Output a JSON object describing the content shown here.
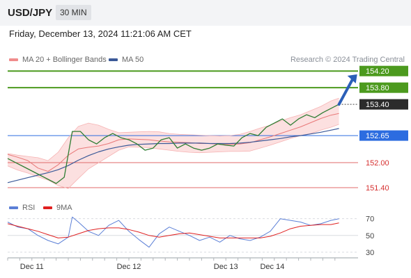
{
  "header": {
    "symbol": "USD/JPY",
    "timeframe": "30 MIN"
  },
  "timestamp": "Friday, December 13, 2024 11:21:06 AM CET",
  "legend": [
    {
      "label": "MA 20 + Bollinger Bands",
      "color": "#f08c8c"
    },
    {
      "label": "MA 50",
      "color": "#3b5998"
    }
  ],
  "credit": "Research © 2024 Trading Central",
  "rsi_legend": [
    {
      "label": "RSI",
      "color": "#5b7fd6"
    },
    {
      "label": "9MA",
      "color": "#e02020"
    }
  ],
  "chart_data": [
    {
      "type": "line",
      "series": [
        {
          "name": "MA 20 + Bollinger Bands",
          "x": [
            0,
            5,
            10,
            15,
            20,
            25,
            30,
            35,
            40,
            45,
            50,
            55,
            60,
            65,
            70,
            75,
            80,
            85,
            90,
            95,
            100,
            105,
            110,
            115,
            120,
            125,
            130,
            135,
            140,
            145,
            150,
            155,
            160,
            164
          ],
          "values": [
            152.2,
            152.13,
            152.05,
            151.87,
            151.79,
            151.95,
            152.18,
            152.33,
            152.37,
            152.4,
            152.46,
            152.55,
            152.57,
            152.56,
            152.55,
            152.52,
            152.5,
            152.49,
            152.48,
            152.46,
            152.46,
            152.44,
            152.44,
            152.45,
            152.48,
            152.55,
            152.62,
            152.7,
            152.78,
            152.86,
            152.96,
            153.06,
            153.14,
            153.18
          ]
        },
        {
          "name": "MA 50",
          "x": [
            0,
            5,
            10,
            15,
            20,
            25,
            30,
            35,
            40,
            45,
            50,
            55,
            60,
            65,
            70,
            75,
            80,
            85,
            90,
            95,
            100,
            105,
            110,
            115,
            120,
            125,
            130,
            135,
            140,
            145,
            150,
            155,
            160,
            164
          ],
          "values": [
            151.52,
            151.58,
            151.64,
            151.7,
            151.76,
            151.83,
            151.93,
            152.06,
            152.17,
            152.26,
            152.33,
            152.38,
            152.42,
            152.44,
            152.45,
            152.46,
            152.46,
            152.47,
            152.47,
            152.47,
            152.46,
            152.46,
            152.46,
            152.47,
            152.49,
            152.52,
            152.55,
            152.58,
            152.62,
            152.65,
            152.69,
            152.73,
            152.78,
            152.82
          ]
        },
        {
          "name": "",
          "x": [
            0,
            5,
            10,
            15,
            20,
            25,
            30,
            35,
            40,
            45,
            50,
            55,
            60,
            65,
            70,
            75,
            80,
            85,
            90,
            95,
            100,
            105,
            110,
            115,
            120,
            125,
            130,
            135,
            140,
            145,
            150,
            155,
            160,
            164
          ],
          "values": [
            152.22,
            152.18,
            152.15,
            152.12,
            152.05,
            152.25,
            152.6,
            152.87,
            152.95,
            152.9,
            152.8,
            152.72,
            152.73,
            152.74,
            152.75,
            152.74,
            152.7,
            152.68,
            152.67,
            152.66,
            152.65,
            152.64,
            152.65,
            152.68,
            152.75,
            152.83,
            152.9,
            153.0,
            153.08,
            153.15,
            153.25,
            153.35,
            153.48,
            153.55
          ]
        },
        {
          "name": "",
          "x": [
            0,
            5,
            10,
            15,
            20,
            25,
            30,
            35,
            40,
            45,
            50,
            55,
            60,
            65,
            70,
            75,
            80,
            85,
            90,
            95,
            100,
            105,
            110,
            115,
            120,
            125,
            130,
            135,
            140,
            145,
            150,
            155,
            160,
            164
          ],
          "values": [
            151.92,
            151.82,
            151.75,
            151.66,
            151.58,
            151.45,
            151.38,
            151.62,
            151.85,
            152.0,
            152.15,
            152.3,
            152.38,
            152.37,
            152.36,
            152.33,
            152.3,
            152.27,
            152.25,
            152.24,
            152.25,
            152.26,
            152.27,
            152.27,
            152.28,
            152.35,
            152.42,
            152.5,
            152.58,
            152.65,
            152.7,
            152.78,
            152.85,
            152.92
          ]
        },
        {
          "name": "",
          "x": [
            0,
            4,
            8,
            12,
            16,
            20,
            24,
            28,
            32,
            36,
            40,
            44,
            48,
            52,
            56,
            60,
            64,
            68,
            72,
            76,
            80,
            84,
            88,
            92,
            96,
            100,
            104,
            108,
            112,
            116,
            120,
            124,
            128,
            132,
            136,
            140,
            144,
            148,
            152,
            156,
            160,
            164
          ],
          "values": [
            152.1,
            152.0,
            151.9,
            151.8,
            151.7,
            151.6,
            151.5,
            151.65,
            152.75,
            152.75,
            152.55,
            152.45,
            152.6,
            152.7,
            152.6,
            152.55,
            152.45,
            152.3,
            152.35,
            152.55,
            152.6,
            152.35,
            152.45,
            152.35,
            152.3,
            152.35,
            152.45,
            152.42,
            152.4,
            152.6,
            152.7,
            152.65,
            152.85,
            152.95,
            153.05,
            152.9,
            153.05,
            153.15,
            153.08,
            153.2,
            153.3,
            153.4
          ]
        }
      ],
      "ylim": [
        151.15,
        154.32
      ],
      "xticks": [
        {
          "x": 12,
          "label": "Dec 11"
        },
        {
          "x": 60,
          "label": "Dec 12"
        },
        {
          "x": 108,
          "label": "Dec 13"
        },
        {
          "x": 131,
          "label": "Dec 14"
        }
      ],
      "levels": [
        {
          "value": 154.2,
          "label": "154.20",
          "kind": "target"
        },
        {
          "value": 153.8,
          "label": "153.80",
          "kind": "target"
        },
        {
          "value": 153.4,
          "label": "153.40",
          "kind": "last"
        },
        {
          "value": 152.65,
          "label": "152.65",
          "kind": "pivot"
        },
        {
          "value": 152.0,
          "label": "152.00",
          "kind": "support"
        },
        {
          "value": 151.4,
          "label": "151.40",
          "kind": "support"
        }
      ],
      "arrow": {
        "from": [
          164,
          153.4
        ],
        "to": [
          173,
          154.12
        ]
      }
    },
    {
      "type": "line",
      "series": [
        {
          "name": "RSI",
          "x": [
            0,
            5,
            10,
            15,
            20,
            25,
            30,
            32,
            35,
            40,
            45,
            50,
            55,
            60,
            65,
            70,
            75,
            80,
            85,
            90,
            95,
            100,
            105,
            110,
            115,
            120,
            125,
            130,
            135,
            140,
            145,
            150,
            155,
            160,
            164
          ],
          "values": [
            66,
            60,
            58,
            50,
            44,
            40,
            48,
            72,
            66,
            55,
            50,
            62,
            68,
            55,
            45,
            36,
            52,
            60,
            55,
            50,
            44,
            48,
            42,
            50,
            46,
            44,
            48,
            55,
            70,
            68,
            66,
            62,
            64,
            68,
            70
          ]
        },
        {
          "name": "9MA",
          "x": [
            0,
            5,
            10,
            15,
            20,
            25,
            30,
            35,
            40,
            45,
            50,
            55,
            60,
            65,
            70,
            75,
            80,
            85,
            90,
            95,
            100,
            105,
            110,
            115,
            120,
            125,
            130,
            135,
            140,
            145,
            150,
            155,
            160,
            164
          ],
          "values": [
            64,
            61,
            58,
            55,
            51,
            47,
            48,
            52,
            56,
            58,
            59,
            59,
            57,
            54,
            50,
            48,
            50,
            52,
            53,
            51,
            49,
            47,
            47,
            47,
            47,
            47,
            49,
            53,
            58,
            61,
            62,
            63,
            63,
            65
          ]
        }
      ],
      "ylim": [
        20,
        78
      ],
      "yticks": [
        70,
        50,
        30
      ]
    }
  ]
}
